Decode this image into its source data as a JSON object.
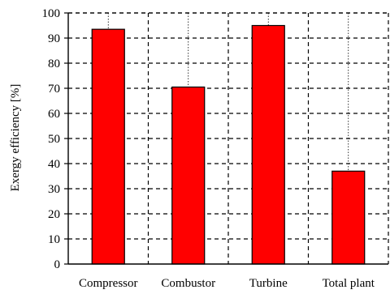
{
  "chart_data": {
    "type": "bar",
    "title": "",
    "xlabel": "",
    "ylabel": "Exergy  efficiency [%]",
    "categories": [
      "Compressor",
      "Combustor",
      "Turbine",
      "Total plant"
    ],
    "values": [
      93.5,
      70.5,
      95,
      37
    ],
    "ylim": [
      0,
      100
    ],
    "yticks": [
      0,
      10,
      20,
      30,
      40,
      50,
      60,
      70,
      80,
      90,
      100
    ],
    "grid": "dashed",
    "bar_color": "#ff0000",
    "bar_edge_color": "#000000"
  }
}
